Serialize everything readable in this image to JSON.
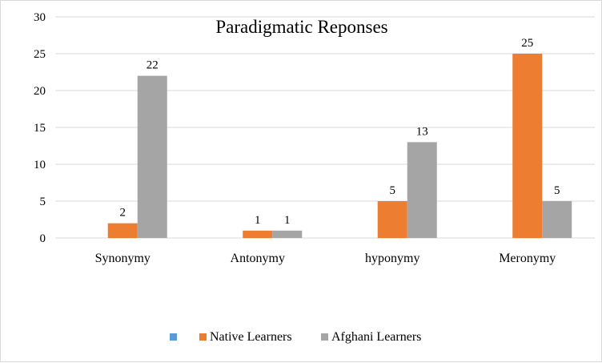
{
  "chart_data": {
    "type": "bar",
    "title": "Paradigmatic Reponses",
    "categories": [
      "Synonymy",
      "Antonymy",
      "hyponymy",
      "Meronymy"
    ],
    "series": [
      {
        "name": "",
        "values": [
          0,
          0,
          0,
          0
        ],
        "color": "#5b9bd5"
      },
      {
        "name": "Native Learners",
        "values": [
          2,
          1,
          5,
          25
        ],
        "color": "#ed7d31"
      },
      {
        "name": "Afghani Learners",
        "values": [
          22,
          1,
          13,
          5
        ],
        "color": "#a5a5a5"
      }
    ],
    "data_labels": [
      {
        "series": 1,
        "labels": [
          "2",
          "1",
          "5",
          "25"
        ]
      },
      {
        "series": 2,
        "labels": [
          "22",
          "1",
          "13",
          "5"
        ]
      }
    ],
    "yticks": [
      "0",
      "5",
      "10",
      "15",
      "20",
      "25",
      "30"
    ],
    "ylim": [
      0,
      30
    ],
    "grid": true,
    "legend": "bottom"
  }
}
